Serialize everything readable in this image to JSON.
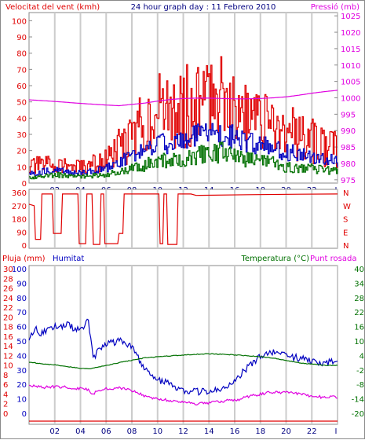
{
  "header": {
    "left_label": "Velocitat del vent (kmh)",
    "center_title": "24 hour graph day : 11 Febrero 2010",
    "right_label": "Pressió (mb)"
  },
  "colors": {
    "red": "#e00000",
    "blue": "#0000c0",
    "green": "#007000",
    "magenta": "#e000e0",
    "grid": "#cccccc"
  },
  "chart_data": [
    {
      "type": "line",
      "name": "wind-and-pressure",
      "title": "24 hour graph day : 11 Febrero 2010",
      "ylabel": "Velocitat del vent (kmh)",
      "y2label": "Pressió (mb)",
      "x_ticks": [
        "02",
        "04",
        "06",
        "08",
        "10",
        "12",
        "14",
        "16",
        "18",
        "20",
        "22",
        "I"
      ],
      "y_ticks": [
        "0",
        "10",
        "20",
        "30",
        "40",
        "50",
        "60",
        "70",
        "80",
        "90",
        "100"
      ],
      "y2_ticks": [
        "975",
        "980",
        "985",
        "990",
        "995",
        "1000",
        "1005",
        "1010",
        "1015",
        "1020",
        "1025"
      ],
      "ylim": [
        0,
        105
      ],
      "y2lim": [
        974,
        1026
      ],
      "x": [
        0,
        2,
        4,
        6,
        7,
        8,
        9,
        10,
        11,
        12,
        13,
        14,
        15,
        16,
        17,
        18,
        19,
        20,
        21,
        22,
        23,
        24
      ],
      "series": [
        {
          "color": "red",
          "values": [
            10,
            12,
            9,
            14,
            22,
            28,
            40,
            45,
            42,
            47,
            49,
            52,
            62,
            48,
            40,
            38,
            37,
            30,
            30,
            26,
            22,
            20
          ]
        },
        {
          "color": "blue",
          "values": [
            6,
            8,
            6,
            9,
            13,
            17,
            20,
            25,
            24,
            26,
            29,
            30,
            31,
            28,
            25,
            23,
            21,
            19,
            18,
            16,
            15,
            13
          ]
        },
        {
          "color": "green",
          "values": [
            3,
            5,
            4,
            5,
            7,
            9,
            11,
            14,
            14,
            15,
            17,
            18,
            19,
            16,
            14,
            13,
            12,
            10,
            9,
            9,
            8,
            7
          ]
        },
        {
          "color": "magenta",
          "axis": "y2",
          "values": [
            999.4,
            998.9,
            998.3,
            997.8,
            997.6,
            998.0,
            998.4,
            999.0,
            999.5,
            999.8,
            999.9,
            999.9,
            999.8,
            999.7,
            999.7,
            999.8,
            1000.0,
            1000.3,
            1000.8,
            1001.4,
            1001.9,
            1002.3
          ]
        }
      ]
    },
    {
      "type": "line",
      "name": "wind-direction",
      "y_ticks": [
        "360",
        "270",
        "180",
        "90",
        "0"
      ],
      "y2_ticks": [
        "N",
        "W",
        "S",
        "E",
        "N"
      ],
      "ylim": [
        0,
        360
      ],
      "x_ticks": [],
      "x": [
        0.0,
        0.4,
        0.5,
        0.9,
        1.0,
        1.8,
        1.9,
        2.5,
        2.6,
        3.8,
        3.9,
        4.4,
        4.5,
        4.9,
        5.0,
        5.5,
        5.6,
        5.8,
        5.9,
        6.9,
        7.0,
        7.3,
        7.4,
        10.1,
        10.2,
        10.4,
        10.5,
        10.7,
        10.8,
        11.5,
        11.6,
        12.6,
        13.0,
        17.0,
        21.0,
        24.0
      ],
      "values": [
        280,
        270,
        40,
        40,
        350,
        350,
        80,
        80,
        350,
        350,
        10,
        10,
        350,
        350,
        5,
        5,
        350,
        350,
        10,
        10,
        80,
        80,
        350,
        350,
        10,
        10,
        350,
        350,
        5,
        5,
        350,
        350,
        340,
        345,
        348,
        350
      ]
    },
    {
      "type": "line",
      "name": "rain-humidity-temperature",
      "labels": {
        "rain": "Pluja (mm)",
        "humidity": "Humitat",
        "temperature": "Temperatura (°C)",
        "dewpoint": "Punt rosada"
      },
      "x_ticks": [
        "02",
        "04",
        "06",
        "08",
        "10",
        "12",
        "14",
        "16",
        "18",
        "20",
        "22",
        "I"
      ],
      "y_ticks_left_outer": [
        "0",
        "2",
        "4",
        "6",
        "8",
        "10",
        "12",
        "14",
        "16",
        "18",
        "20",
        "22",
        "24",
        "26",
        "28",
        "30"
      ],
      "y_ticks_left_inner": [
        "0",
        "10",
        "20",
        "30",
        "40",
        "50",
        "60",
        "70",
        "80",
        "90",
        "100"
      ],
      "y_ticks_right": [
        "40",
        "34",
        "28",
        "22",
        "16",
        "10",
        "4",
        "-2",
        "-8",
        "-14",
        "-20"
      ],
      "ylim": [
        0,
        100
      ],
      "y2lim": [
        -20,
        40
      ],
      "x": [
        0,
        0.5,
        1,
        2,
        3,
        4,
        4.6,
        5.0,
        5.3,
        6,
        7,
        8,
        9,
        10,
        11,
        12,
        13,
        14,
        15,
        16,
        17,
        18,
        19,
        20,
        21,
        22,
        23,
        24
      ],
      "series": [
        {
          "key": "humidity",
          "color": "blue",
          "values": [
            52,
            58,
            55,
            60,
            61,
            57,
            64,
            38,
            42,
            48,
            50,
            47,
            30,
            23,
            20,
            16,
            15,
            15,
            18,
            22,
            32,
            39,
            42,
            40,
            38,
            36,
            35,
            36
          ]
        },
        {
          "key": "temperature",
          "color": "green",
          "axis": "y2",
          "values": [
            1.2,
            0.9,
            0.5,
            0.1,
            -0.6,
            -1.3,
            -1.6,
            -1.2,
            -0.9,
            -0.2,
            1.0,
            2.0,
            3.0,
            3.4,
            3.8,
            4.2,
            4.5,
            4.7,
            4.5,
            4.2,
            3.9,
            3.5,
            2.9,
            1.9,
            1.0,
            0.4,
            -0.1,
            -0.2
          ]
        },
        {
          "key": "dewpoint",
          "color": "magenta",
          "axis": "y2",
          "values": [
            -8.5,
            -8.8,
            -9.3,
            -9.0,
            -9.2,
            -9.8,
            -10.2,
            -12.0,
            -11.0,
            -9.8,
            -9.5,
            -10.6,
            -12.8,
            -14.1,
            -14.8,
            -15.5,
            -16.0,
            -15.6,
            -15.0,
            -14.6,
            -13.2,
            -12.1,
            -11.2,
            -11.4,
            -11.9,
            -12.8,
            -13.4,
            -13.2
          ]
        },
        {
          "key": "rain",
          "color": "red",
          "values": [
            0,
            0,
            0,
            0,
            0,
            0,
            0,
            0,
            0,
            0,
            0,
            0,
            0,
            0,
            0,
            0,
            0,
            0,
            0,
            0,
            0,
            0,
            0,
            0,
            0,
            0,
            0,
            0
          ]
        }
      ]
    }
  ]
}
